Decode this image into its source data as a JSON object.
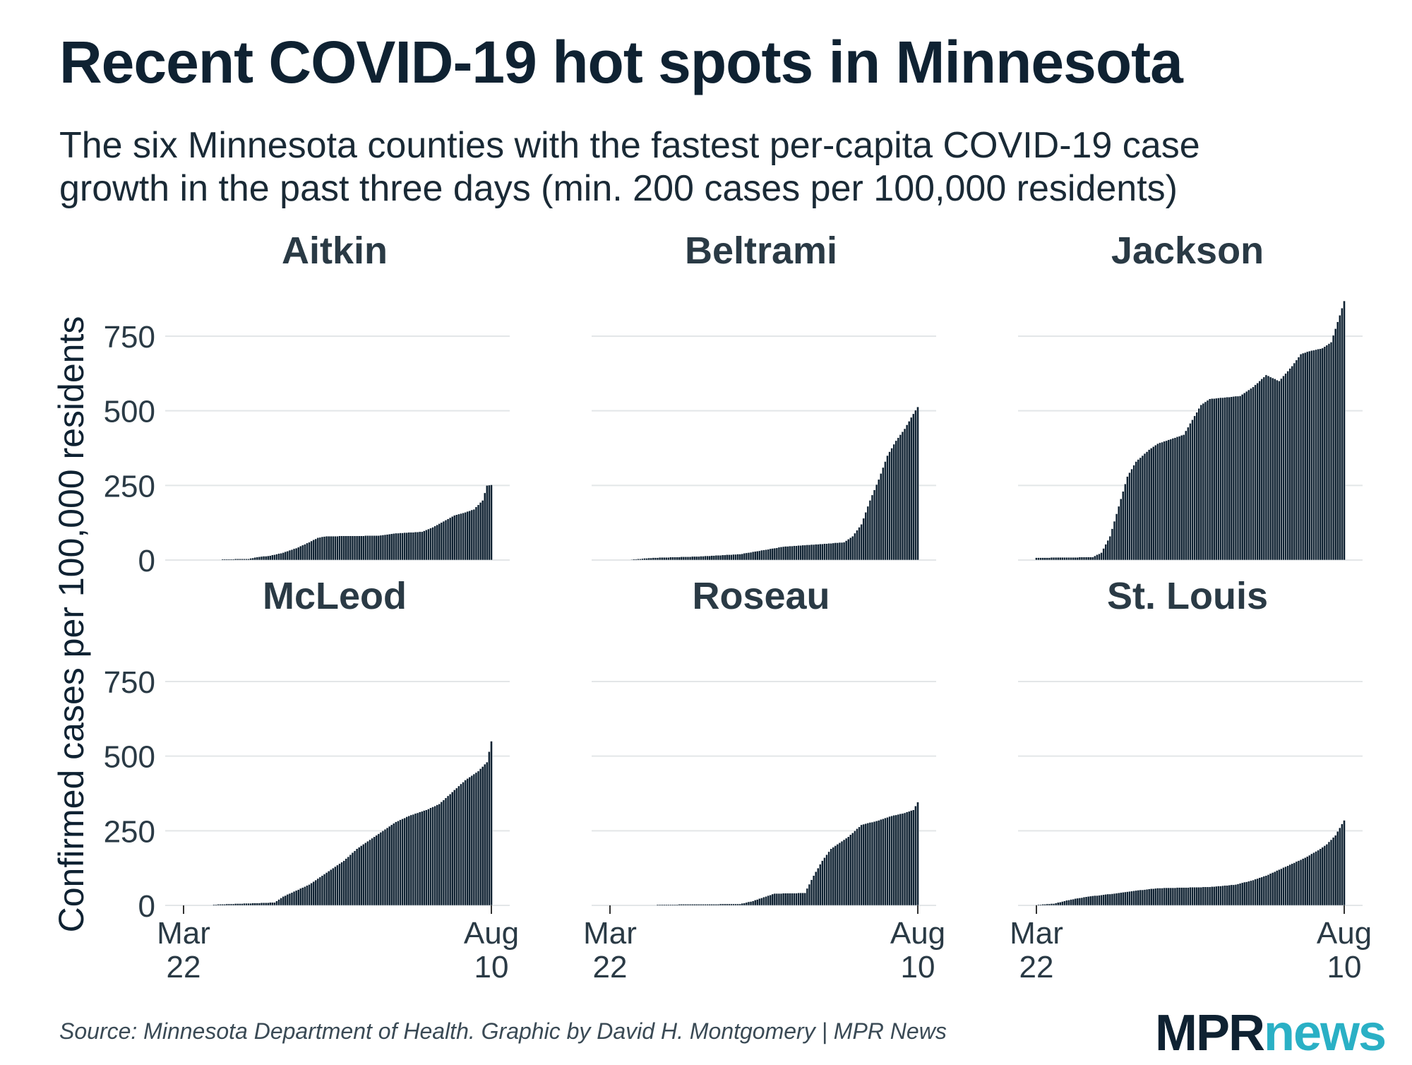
{
  "title": "Recent COVID-19 hot spots in Minnesota",
  "subtitle_lines": [
    "The six Minnesota counties with the fastest per-capita COVID-19 case",
    "growth in the past three days (min. 200 cases per 100,000 residents)"
  ],
  "source": "Source: Minnesota Department of Health. Graphic by David H. Montgomery | MPR News",
  "logo": {
    "mpr": "MPR",
    "news": "news"
  },
  "colors": {
    "bar": "#0f2232",
    "bar_outline": "#ffffff",
    "grid": "#e3e6e8",
    "text": "#0f2232",
    "logo_accent": "#2ab0c5"
  },
  "chart_data": {
    "type": "bar",
    "layout": "small-multiples",
    "ylabel": "Confirmed cases per 100,000 residents",
    "ylim": [
      0,
      880
    ],
    "yticks": [
      0,
      250,
      500,
      750
    ],
    "x_start_label": [
      "Mar",
      "22"
    ],
    "x_end_label": [
      "Aug",
      "10"
    ],
    "x_days": 142,
    "panels": [
      {
        "name": "Aitkin",
        "start_day": 18,
        "keyframes": [
          [
            18,
            3
          ],
          [
            30,
            4
          ],
          [
            34,
            10
          ],
          [
            40,
            15
          ],
          [
            46,
            25
          ],
          [
            52,
            40
          ],
          [
            58,
            60
          ],
          [
            62,
            75
          ],
          [
            66,
            80
          ],
          [
            90,
            82
          ],
          [
            98,
            90
          ],
          [
            110,
            95
          ],
          [
            115,
            110
          ],
          [
            120,
            130
          ],
          [
            125,
            150
          ],
          [
            130,
            160
          ],
          [
            134,
            170
          ],
          [
            138,
            200
          ],
          [
            140,
            250
          ],
          [
            142,
            252
          ]
        ]
      },
      {
        "name": "Beltrami",
        "start_day": 10,
        "keyframes": [
          [
            10,
            2
          ],
          [
            20,
            8
          ],
          [
            40,
            12
          ],
          [
            60,
            20
          ],
          [
            80,
            45
          ],
          [
            100,
            55
          ],
          [
            108,
            60
          ],
          [
            112,
            80
          ],
          [
            116,
            120
          ],
          [
            120,
            200
          ],
          [
            124,
            270
          ],
          [
            128,
            350
          ],
          [
            132,
            400
          ],
          [
            136,
            440
          ],
          [
            140,
            490
          ],
          [
            142,
            513
          ]
        ]
      },
      {
        "name": "Jackson",
        "start_day": 0,
        "keyframes": [
          [
            0,
            8
          ],
          [
            26,
            10
          ],
          [
            30,
            25
          ],
          [
            34,
            80
          ],
          [
            38,
            180
          ],
          [
            42,
            280
          ],
          [
            46,
            330
          ],
          [
            52,
            370
          ],
          [
            56,
            390
          ],
          [
            68,
            420
          ],
          [
            76,
            520
          ],
          [
            80,
            540
          ],
          [
            94,
            550
          ],
          [
            100,
            580
          ],
          [
            106,
            620
          ],
          [
            112,
            600
          ],
          [
            118,
            650
          ],
          [
            122,
            690
          ],
          [
            126,
            700
          ],
          [
            132,
            710
          ],
          [
            136,
            730
          ],
          [
            140,
            820
          ],
          [
            142,
            868
          ]
        ]
      },
      {
        "name": "McLeod",
        "start_day": 14,
        "keyframes": [
          [
            14,
            3
          ],
          [
            26,
            6
          ],
          [
            42,
            10
          ],
          [
            46,
            30
          ],
          [
            52,
            50
          ],
          [
            58,
            70
          ],
          [
            66,
            110
          ],
          [
            74,
            150
          ],
          [
            80,
            190
          ],
          [
            86,
            220
          ],
          [
            92,
            250
          ],
          [
            98,
            280
          ],
          [
            104,
            300
          ],
          [
            112,
            320
          ],
          [
            118,
            340
          ],
          [
            124,
            380
          ],
          [
            130,
            420
          ],
          [
            136,
            450
          ],
          [
            140,
            480
          ],
          [
            142,
            550
          ]
        ]
      },
      {
        "name": "Roseau",
        "start_day": 22,
        "keyframes": [
          [
            22,
            3
          ],
          [
            60,
            5
          ],
          [
            66,
            15
          ],
          [
            72,
            30
          ],
          [
            76,
            40
          ],
          [
            90,
            42
          ],
          [
            94,
            100
          ],
          [
            98,
            150
          ],
          [
            102,
            190
          ],
          [
            106,
            210
          ],
          [
            110,
            230
          ],
          [
            116,
            270
          ],
          [
            124,
            285
          ],
          [
            130,
            300
          ],
          [
            136,
            310
          ],
          [
            140,
            320
          ],
          [
            142,
            346
          ]
        ]
      },
      {
        "name": "St. Louis",
        "start_day": 0,
        "keyframes": [
          [
            0,
            2
          ],
          [
            8,
            6
          ],
          [
            16,
            20
          ],
          [
            24,
            30
          ],
          [
            36,
            40
          ],
          [
            46,
            50
          ],
          [
            56,
            58
          ],
          [
            80,
            62
          ],
          [
            92,
            70
          ],
          [
            100,
            85
          ],
          [
            106,
            100
          ],
          [
            112,
            120
          ],
          [
            118,
            140
          ],
          [
            124,
            160
          ],
          [
            130,
            185
          ],
          [
            134,
            205
          ],
          [
            138,
            235
          ],
          [
            140,
            260
          ],
          [
            142,
            285
          ]
        ]
      }
    ]
  }
}
